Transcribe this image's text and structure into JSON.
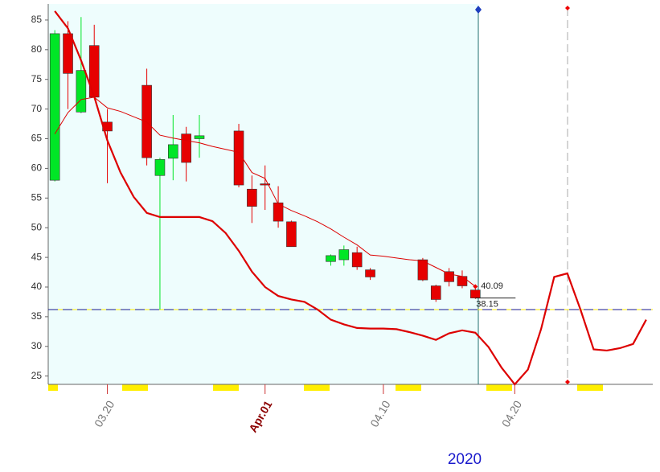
{
  "chart_data": {
    "type": "candlestick",
    "categories": [
      null,
      null,
      null,
      null,
      "03.20",
      null,
      null,
      null,
      null,
      null,
      null,
      null,
      null,
      null,
      null,
      null,
      "Apr.01",
      null,
      null,
      null,
      null,
      null,
      null,
      null,
      null,
      "04.10",
      null,
      null,
      null,
      null,
      null,
      null,
      null,
      null,
      null,
      "04.20",
      null,
      null,
      null,
      null,
      null,
      null,
      null,
      null,
      null,
      null
    ],
    "candles": {
      "open": [
        58,
        82.7,
        69.5,
        80.7,
        67.8,
        null,
        null,
        74,
        58.8,
        61.7,
        65.8,
        65,
        null,
        null,
        66.3,
        56.5,
        57.4,
        54.2,
        51,
        null,
        null,
        44.3,
        44.6,
        45.8,
        42.9,
        null,
        null,
        null,
        44.6,
        40.2,
        42.6,
        41.8,
        39.5,
        null,
        null,
        null,
        null,
        null,
        null,
        null,
        null,
        null,
        null,
        null,
        null,
        null
      ],
      "high": [
        83.3,
        84.8,
        85.5,
        84.2,
        70,
        null,
        null,
        76.8,
        61.8,
        69,
        67,
        69,
        null,
        null,
        67.5,
        58.8,
        60.5,
        57,
        51.2,
        null,
        null,
        45.5,
        47,
        46.8,
        43.2,
        null,
        null,
        null,
        44.9,
        40.4,
        43.2,
        42.8,
        39.7,
        null,
        null,
        null,
        null,
        null,
        null,
        null,
        null,
        null,
        null,
        null,
        null,
        null
      ],
      "low": [
        57.8,
        70,
        69.3,
        72,
        57.5,
        null,
        null,
        60.5,
        36.2,
        58,
        57.8,
        61.8,
        null,
        null,
        56.8,
        50.8,
        53,
        50,
        46.8,
        null,
        null,
        43.6,
        43.6,
        42.9,
        41.2,
        null,
        null,
        null,
        41,
        37.5,
        40.1,
        39.8,
        38,
        null,
        null,
        null,
        null,
        null,
        null,
        null,
        null,
        null,
        null,
        null,
        null,
        null
      ],
      "close": [
        82.7,
        76,
        76.5,
        72,
        66.3,
        null,
        null,
        61.8,
        61.5,
        64,
        61,
        65.5,
        null,
        null,
        57.2,
        53.6,
        57.2,
        51.1,
        46.8,
        null,
        null,
        45.3,
        46.3,
        43.4,
        41.7,
        null,
        null,
        null,
        41.2,
        37.9,
        40.9,
        40.2,
        38.15,
        null,
        null,
        null,
        null,
        null,
        null,
        null,
        null,
        null,
        null,
        null,
        null,
        null
      ],
      "up_color": "#00e626",
      "down_color": "#e60000"
    },
    "lines": [
      {
        "color": "#dd0000",
        "width": 1,
        "values": [
          65.8,
          69.4,
          71.6,
          72.0,
          70.2,
          69.6,
          68.7,
          67.8,
          65.6,
          65.1,
          64.7,
          64.3,
          63.7,
          63.2,
          62.7,
          59.3,
          58.3,
          54.0,
          52.9,
          52.0,
          51.0,
          49.8,
          48.4,
          47.1,
          45.4,
          45.2,
          44.9,
          44.6,
          44.4,
          43.3,
          42.2,
          41.8,
          40.09,
          null,
          null,
          null,
          null,
          null,
          null,
          null,
          null,
          null,
          null,
          null,
          null,
          null
        ]
      },
      {
        "color": "#dd0000",
        "width": 2.2,
        "values": [
          86.5,
          83.6,
          78.2,
          72.1,
          64.7,
          59.3,
          55.2,
          52.5,
          51.8,
          51.8,
          51.8,
          51.8,
          51.1,
          49.1,
          46.1,
          42.6,
          40.0,
          38.5,
          37.9,
          37.5,
          36.2,
          34.5,
          33.7,
          33.1,
          33.0,
          33.0,
          32.9,
          32.4,
          31.8,
          31.1,
          32.2,
          32.7,
          32.3,
          29.9,
          26.4,
          23.6,
          26.1,
          32.9,
          41.7,
          42.3,
          36.2,
          29.5,
          29.3,
          29.7,
          30.4,
          34.5
        ]
      }
    ],
    "annotations": [
      40.09,
      38.15
    ],
    "hline": 36.2,
    "year_label": "2020",
    "ylim": [
      23.6,
      87.7
    ],
    "yticks": [
      25,
      30,
      35,
      40,
      45,
      50,
      55,
      60,
      65,
      70,
      75,
      80,
      85
    ]
  }
}
